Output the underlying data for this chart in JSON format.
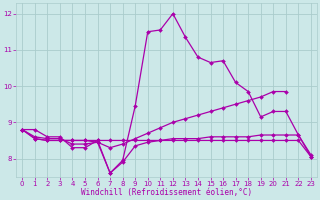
{
  "xlabel": "Windchill (Refroidissement éolien,°C)",
  "background_color": "#cce8e8",
  "grid_color": "#aacccc",
  "line_color": "#aa00aa",
  "x_values": [
    0,
    1,
    2,
    3,
    4,
    5,
    6,
    7,
    8,
    9,
    10,
    11,
    12,
    13,
    14,
    15,
    16,
    17,
    18,
    19,
    20,
    21,
    22,
    23
  ],
  "lines": [
    [
      8.8,
      8.8,
      8.6,
      8.6,
      8.3,
      8.3,
      8.5,
      7.6,
      7.95,
      9.45,
      11.5,
      11.55,
      12.0,
      11.35,
      10.8,
      10.65,
      10.7,
      10.1,
      9.85,
      9.15,
      9.3,
      9.3,
      8.65,
      8.1
    ],
    [
      8.8,
      8.6,
      8.55,
      8.55,
      8.4,
      8.4,
      8.45,
      8.3,
      8.4,
      8.55,
      8.7,
      8.85,
      9.0,
      9.1,
      9.2,
      9.3,
      9.4,
      9.5,
      9.6,
      9.7,
      9.85,
      9.85,
      null,
      null
    ],
    [
      8.8,
      8.55,
      8.5,
      8.5,
      8.5,
      8.5,
      8.45,
      7.6,
      7.9,
      8.35,
      8.45,
      8.5,
      8.55,
      8.55,
      8.55,
      8.6,
      8.6,
      8.6,
      8.6,
      8.65,
      8.65,
      8.65,
      8.65,
      8.05
    ],
    [
      8.8,
      8.55,
      8.5,
      8.5,
      8.5,
      8.5,
      8.5,
      8.5,
      8.5,
      8.5,
      8.5,
      8.5,
      8.5,
      8.5,
      8.5,
      8.5,
      8.5,
      8.5,
      8.5,
      8.5,
      8.5,
      8.5,
      8.5,
      8.05
    ]
  ],
  "ylim": [
    7.5,
    12.3
  ],
  "yticks": [
    8,
    9,
    10,
    11,
    12
  ],
  "xlim": [
    -0.5,
    23.5
  ],
  "xticks": [
    0,
    1,
    2,
    3,
    4,
    5,
    6,
    7,
    8,
    9,
    10,
    11,
    12,
    13,
    14,
    15,
    16,
    17,
    18,
    19,
    20,
    21,
    22,
    23
  ],
  "marker": "D",
  "markersize": 2.0,
  "linewidth": 0.9,
  "tick_fontsize": 5.0,
  "xlabel_fontsize": 5.5
}
